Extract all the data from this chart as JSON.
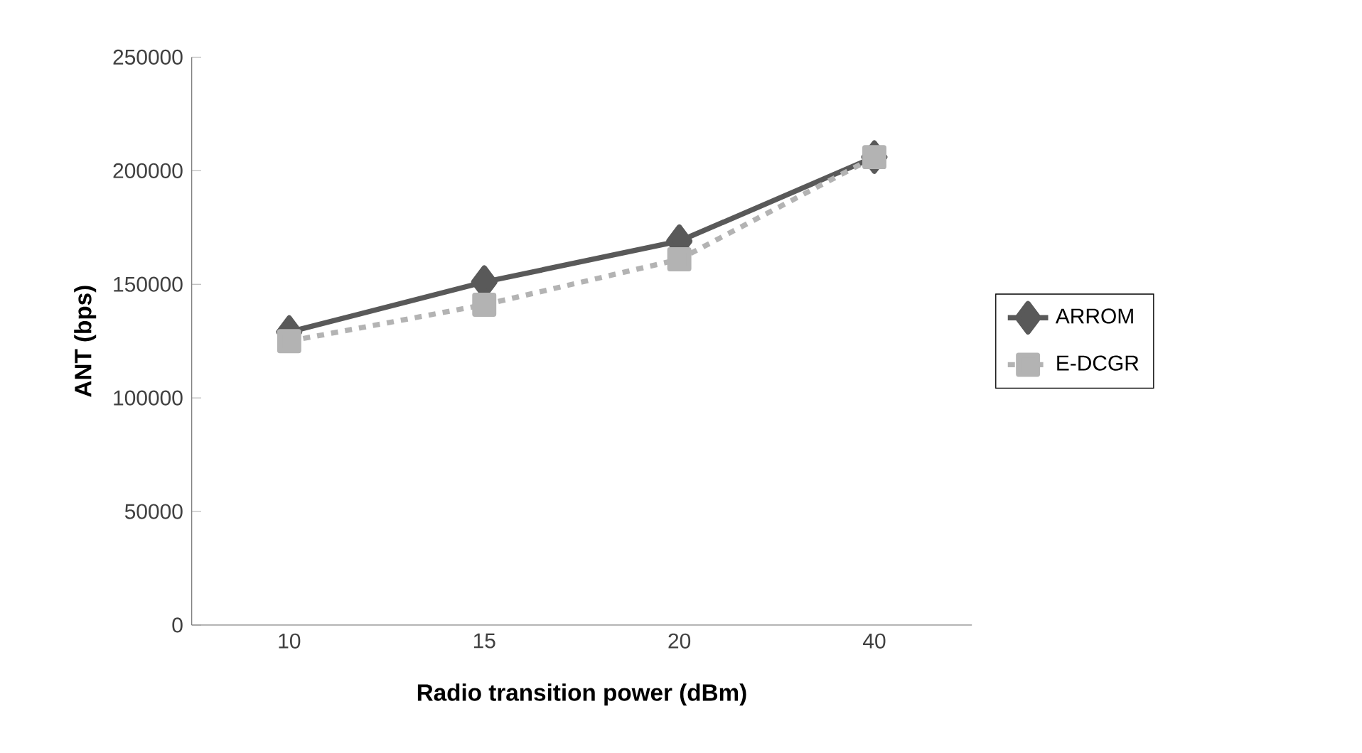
{
  "chart_data": {
    "type": "line",
    "xlabel": "Radio transition power (dBm)",
    "ylabel": "ANT (bps)",
    "categories": [
      "10",
      "15",
      "20",
      "40"
    ],
    "series": [
      {
        "name": "ARROM",
        "color": "#595959",
        "values": [
          129000,
          151000,
          169000,
          206000
        ],
        "marker": "diamond",
        "line_style": "solid"
      },
      {
        "name": "E-DCGR",
        "color": "#b3b3b3",
        "values": [
          125000,
          141000,
          161000,
          206000
        ],
        "marker": "square",
        "line_style": "dashed"
      }
    ],
    "ylim": [
      0,
      250000
    ],
    "yticks": [
      0,
      50000,
      100000,
      150000,
      200000,
      250000
    ],
    "grid": false,
    "legend": "right"
  }
}
